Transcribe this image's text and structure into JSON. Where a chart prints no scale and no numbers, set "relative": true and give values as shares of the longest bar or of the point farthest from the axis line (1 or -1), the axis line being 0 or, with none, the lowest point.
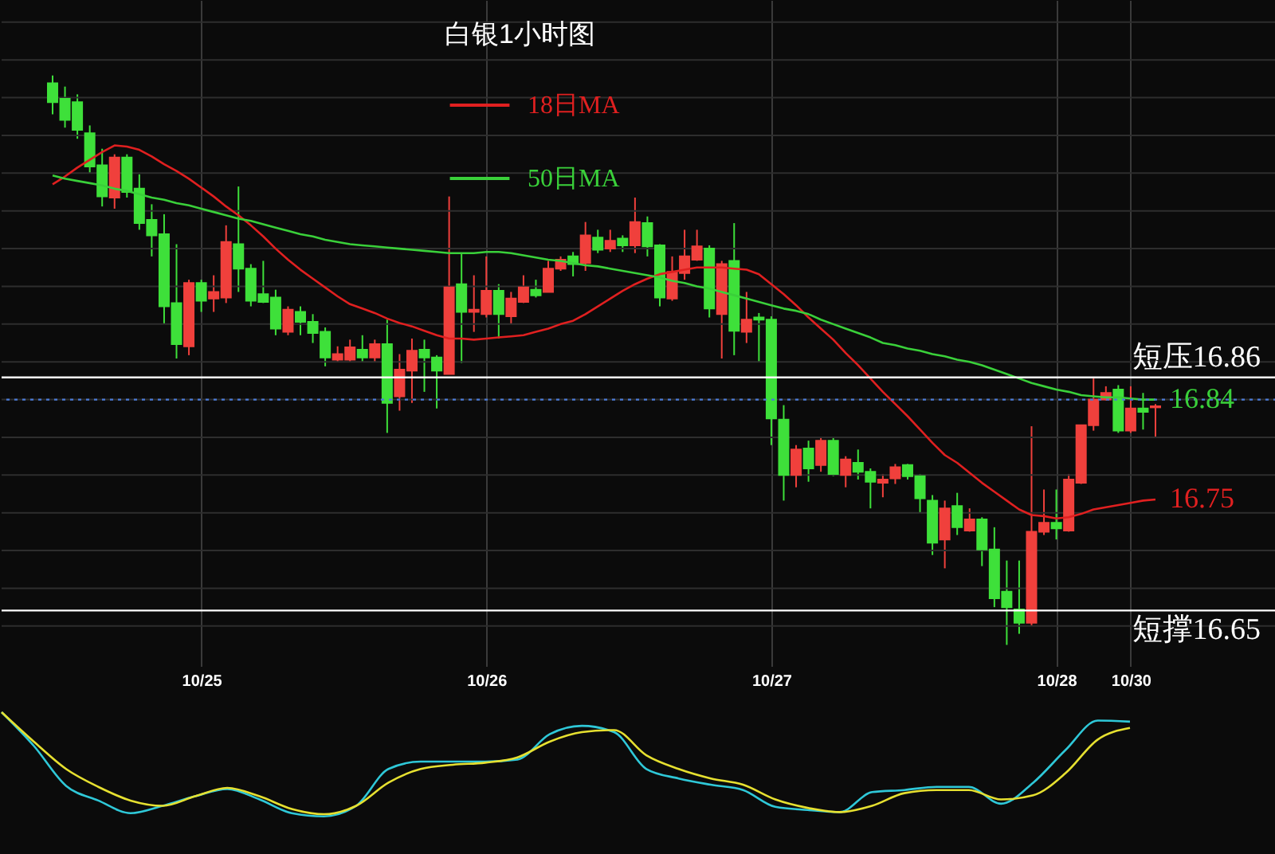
{
  "chart_data": [
    {
      "type": "candlestick",
      "title": "白银1小时图",
      "categories": [
        null,
        null,
        null,
        null,
        null,
        null,
        null,
        null,
        null,
        null,
        null,
        null,
        "10/25",
        null,
        null,
        null,
        null,
        null,
        null,
        null,
        null,
        null,
        null,
        null,
        null,
        null,
        null,
        null,
        null,
        null,
        null,
        null,
        null,
        null,
        null,
        "10/26",
        null,
        null,
        null,
        null,
        null,
        null,
        null,
        null,
        null,
        null,
        null,
        null,
        null,
        null,
        null,
        null,
        null,
        null,
        null,
        null,
        null,
        null,
        "10/27",
        null,
        null,
        null,
        null,
        null,
        null,
        null,
        null,
        null,
        null,
        null,
        null,
        null,
        null,
        null,
        null,
        null,
        null,
        null,
        null,
        null,
        null,
        "10/28",
        null,
        null,
        null,
        null,
        null,
        "10/30",
        null,
        null
      ],
      "ohlc": [
        [
          17.125,
          17.132,
          17.097,
          17.108
        ],
        [
          17.111,
          17.122,
          17.085,
          17.092
        ],
        [
          17.108,
          17.115,
          17.075,
          17.083
        ],
        [
          17.08,
          17.087,
          17.044,
          17.05
        ],
        [
          17.051,
          17.066,
          17.014,
          17.023
        ],
        [
          17.022,
          17.061,
          17.012,
          17.058
        ],
        [
          17.058,
          17.061,
          17.022,
          17.027
        ],
        [
          17.03,
          17.043,
          16.993,
          16.999
        ],
        [
          17.002,
          17.016,
          16.969,
          16.988
        ],
        [
          16.989,
          17.007,
          16.908,
          16.924
        ],
        [
          16.927,
          16.98,
          16.877,
          16.89
        ],
        [
          16.888,
          16.948,
          16.88,
          16.945
        ],
        [
          16.945,
          16.948,
          16.919,
          16.929
        ],
        [
          16.931,
          16.952,
          16.919,
          16.937
        ],
        [
          16.932,
          16.997,
          16.927,
          16.982
        ],
        [
          16.98,
          17.032,
          16.937,
          16.958
        ],
        [
          16.958,
          16.962,
          16.924,
          16.929
        ],
        [
          16.935,
          16.965,
          16.927,
          16.928
        ],
        [
          16.932,
          16.939,
          16.898,
          16.904
        ],
        [
          16.901,
          16.924,
          16.898,
          16.921
        ],
        [
          16.919,
          16.924,
          16.898,
          16.91
        ],
        [
          16.91,
          16.917,
          16.891,
          16.9
        ],
        [
          16.901,
          16.905,
          16.87,
          16.878
        ],
        [
          16.876,
          16.888,
          16.874,
          16.881
        ],
        [
          16.876,
          16.894,
          16.874,
          16.887
        ],
        [
          16.885,
          16.898,
          16.874,
          16.878
        ],
        [
          16.878,
          16.894,
          16.874,
          16.89
        ],
        [
          16.89,
          16.912,
          16.81,
          16.837
        ],
        [
          16.843,
          16.881,
          16.83,
          16.867
        ],
        [
          16.866,
          16.895,
          16.837,
          16.884
        ],
        [
          16.885,
          16.894,
          16.847,
          16.878
        ],
        [
          16.878,
          16.88,
          16.832,
          16.866
        ],
        [
          16.863,
          17.023,
          16.863,
          16.941
        ],
        [
          16.944,
          16.972,
          16.873,
          16.919
        ],
        [
          16.919,
          16.952,
          16.901,
          16.921
        ],
        [
          16.917,
          16.969,
          16.914,
          16.938
        ],
        [
          16.938,
          16.944,
          16.895,
          16.917
        ],
        [
          16.915,
          16.937,
          16.908,
          16.931
        ],
        [
          16.928,
          16.952,
          16.927,
          16.941
        ],
        [
          16.939,
          16.948,
          16.932,
          16.934
        ],
        [
          16.937,
          16.965,
          16.937,
          16.958
        ],
        [
          16.958,
          16.969,
          16.956,
          16.966
        ],
        [
          16.969,
          16.973,
          16.951,
          16.962
        ],
        [
          16.963,
          17.0,
          16.956,
          16.988
        ],
        [
          16.986,
          16.993,
          16.972,
          16.975
        ],
        [
          16.976,
          16.993,
          16.973,
          16.983
        ],
        [
          16.985,
          16.988,
          16.973,
          16.979
        ],
        [
          16.979,
          17.022,
          16.972,
          17.0
        ],
        [
          16.999,
          17.005,
          16.969,
          16.978
        ],
        [
          16.979,
          16.98,
          16.924,
          16.932
        ],
        [
          16.931,
          16.969,
          16.929,
          16.955
        ],
        [
          16.954,
          16.993,
          16.948,
          16.969
        ],
        [
          16.966,
          16.993,
          16.965,
          16.978
        ],
        [
          16.976,
          16.979,
          16.914,
          16.922
        ],
        [
          16.917,
          16.965,
          16.877,
          16.962
        ],
        [
          16.965,
          16.999,
          16.88,
          16.902
        ],
        [
          16.901,
          16.937,
          16.891,
          16.912
        ],
        [
          16.914,
          16.918,
          16.874,
          16.912
        ],
        [
          16.912,
          16.915,
          16.799,
          16.823
        ],
        [
          16.822,
          16.835,
          16.749,
          16.772
        ],
        [
          16.772,
          16.799,
          16.761,
          16.795
        ],
        [
          16.796,
          16.803,
          16.766,
          16.778
        ],
        [
          16.781,
          16.806,
          16.775,
          16.803
        ],
        [
          16.803,
          16.806,
          16.771,
          16.773
        ],
        [
          16.772,
          16.789,
          16.761,
          16.786
        ],
        [
          16.783,
          16.795,
          16.768,
          16.775
        ],
        [
          16.775,
          16.778,
          16.742,
          16.766
        ],
        [
          16.765,
          16.773,
          16.752,
          16.768
        ],
        [
          16.769,
          16.782,
          16.764,
          16.779
        ],
        [
          16.781,
          16.782,
          16.768,
          16.771
        ],
        [
          16.771,
          16.773,
          16.738,
          16.751
        ],
        [
          16.749,
          16.754,
          16.7,
          16.711
        ],
        [
          16.714,
          16.749,
          16.688,
          16.742
        ],
        [
          16.744,
          16.756,
          16.718,
          16.725
        ],
        [
          16.722,
          16.742,
          16.721,
          16.732
        ],
        [
          16.732,
          16.734,
          16.69,
          16.705
        ],
        [
          16.705,
          16.725,
          16.653,
          16.661
        ],
        [
          16.667,
          16.695,
          16.619,
          16.653
        ],
        [
          16.651,
          16.695,
          16.629,
          16.639
        ],
        [
          16.639,
          16.816,
          16.636,
          16.721
        ],
        [
          16.721,
          16.759,
          16.718,
          16.729
        ],
        [
          16.729,
          16.759,
          16.714,
          16.724
        ],
        [
          16.722,
          16.773,
          16.721,
          16.768
        ],
        [
          16.765,
          16.817,
          16.764,
          16.817
        ],
        [
          16.817,
          16.859,
          16.812,
          16.84
        ],
        [
          16.84,
          16.852,
          16.839,
          16.846
        ],
        [
          16.849,
          16.853,
          16.81,
          16.812
        ],
        [
          16.812,
          16.852,
          16.81,
          16.832
        ],
        [
          16.832,
          16.846,
          16.813,
          16.829
        ],
        [
          16.833,
          16.836,
          16.806,
          16.834
        ]
      ],
      "colors": [
        "#3ee03a",
        "#3ee03a",
        "#3ee03a",
        "#3ee03a",
        "#3ee03a",
        "#f0403c",
        "#3ee03a",
        "#3ee03a",
        "#3ee03a",
        "#3ee03a",
        "#3ee03a",
        "#f0403c",
        "#3ee03a",
        "#f0403c",
        "#f0403c",
        "#3ee03a",
        "#3ee03a",
        "#3ee03a",
        "#3ee03a",
        "#f0403c",
        "#3ee03a",
        "#3ee03a",
        "#3ee03a",
        "#f0403c",
        "#f0403c",
        "#3ee03a",
        "#f0403c",
        "#3ee03a",
        "#f0403c",
        "#f0403c",
        "#3ee03a",
        "#3ee03a",
        "#f0403c",
        "#3ee03a",
        "#f0403c",
        "#f0403c",
        "#3ee03a",
        "#f0403c",
        "#f0403c",
        "#3ee03a",
        "#f0403c",
        "#f0403c",
        "#3ee03a",
        "#f0403c",
        "#3ee03a",
        "#f0403c",
        "#3ee03a",
        "#f0403c",
        "#3ee03a",
        "#3ee03a",
        "#f0403c",
        "#f0403c",
        "#f0403c",
        "#3ee03a",
        "#f0403c",
        "#3ee03a",
        "#f0403c",
        "#3ee03a",
        "#3ee03a",
        "#3ee03a",
        "#f0403c",
        "#3ee03a",
        "#f0403c",
        "#3ee03a",
        "#f0403c",
        "#3ee03a",
        "#3ee03a",
        "#f0403c",
        "#f0403c",
        "#3ee03a",
        "#3ee03a",
        "#3ee03a",
        "#f0403c",
        "#3ee03a",
        "#f0403c",
        "#3ee03a",
        "#3ee03a",
        "#3ee03a",
        "#3ee03a",
        "#f0403c",
        "#f0403c",
        "#3ee03a",
        "#f0403c",
        "#f0403c",
        "#f0403c",
        "#f0403c",
        "#3ee03a",
        "#f0403c",
        "#3ee03a",
        "#f0403c"
      ],
      "series": [
        {
          "type": "line",
          "name": "18日MA",
          "color": "#e02020",
          "values": [
            17.034,
            17.041,
            17.049,
            17.056,
            17.063,
            17.069,
            17.068,
            17.065,
            17.059,
            17.052,
            17.046,
            17.039,
            17.031,
            17.023,
            17.014,
            17.006,
            16.997,
            16.987,
            16.976,
            16.966,
            16.957,
            16.949,
            16.941,
            16.933,
            16.926,
            16.922,
            16.918,
            16.913,
            16.909,
            16.906,
            16.902,
            16.898,
            16.895,
            16.895,
            16.894,
            16.895,
            16.896,
            16.897,
            16.898,
            16.901,
            16.904,
            16.908,
            16.911,
            16.917,
            16.924,
            16.931,
            16.938,
            16.944,
            16.949,
            16.953,
            16.955,
            16.957,
            16.959,
            16.959,
            16.959,
            16.958,
            16.957,
            16.953,
            16.944,
            16.935,
            16.925,
            16.914,
            16.904,
            16.894,
            16.882,
            16.871,
            16.859,
            16.847,
            16.836,
            16.825,
            16.813,
            16.801,
            16.79,
            16.783,
            16.774,
            16.765,
            16.757,
            16.749,
            16.741,
            16.736,
            16.735,
            16.733,
            16.734,
            16.737,
            16.741,
            16.743,
            16.745,
            16.747,
            16.749,
            16.75
          ]
        },
        {
          "type": "line",
          "name": "50日MA",
          "color": "#3ad03a",
          "values": [
            17.042,
            17.039,
            17.037,
            17.035,
            17.033,
            17.03,
            17.028,
            17.025,
            17.022,
            17.02,
            17.017,
            17.015,
            17.012,
            17.009,
            17.006,
            17.003,
            17.001,
            16.998,
            16.995,
            16.992,
            16.989,
            16.987,
            16.984,
            16.982,
            16.98,
            16.979,
            16.978,
            16.977,
            16.976,
            16.975,
            16.974,
            16.973,
            16.972,
            16.972,
            16.972,
            16.973,
            16.973,
            16.972,
            16.97,
            16.968,
            16.966,
            16.965,
            16.963,
            16.961,
            16.96,
            16.958,
            16.956,
            16.954,
            16.952,
            16.95,
            16.947,
            16.945,
            16.942,
            16.94,
            16.937,
            16.934,
            16.931,
            16.928,
            16.925,
            16.922,
            16.92,
            16.917,
            16.912,
            16.908,
            16.904,
            16.9,
            16.896,
            16.891,
            16.889,
            16.886,
            16.884,
            16.881,
            16.879,
            16.876,
            16.874,
            16.871,
            16.867,
            16.863,
            16.859,
            16.855,
            16.852,
            16.849,
            16.847,
            16.844,
            16.843,
            16.842,
            16.842,
            16.841,
            16.84,
            16.84
          ]
        }
      ],
      "ylim": [
        16.6,
        17.2
      ],
      "yticks": [
        {
          "value": 16.636,
          "label": null
        },
        {
          "value": 16.67,
          "label": null
        },
        {
          "value": 16.704,
          "label": null
        },
        {
          "value": 16.738,
          "label": null
        },
        {
          "value": 16.772,
          "label": null
        },
        {
          "value": 16.806,
          "label": null
        },
        {
          "value": 16.84,
          "label": null
        },
        {
          "value": 16.874,
          "label": null
        },
        {
          "value": 16.908,
          "label": null
        },
        {
          "value": 16.942,
          "label": null
        },
        {
          "value": 16.976,
          "label": null
        },
        {
          "value": 17.01,
          "label": null
        },
        {
          "value": 17.044,
          "label": null
        },
        {
          "value": 17.078,
          "label": null
        },
        {
          "value": 17.112,
          "label": null
        },
        {
          "value": 17.146,
          "label": null
        },
        {
          "value": 17.18,
          "label": null
        }
      ],
      "tick_labels": "x",
      "grid": true,
      "legend": "top",
      "ref_lines": [
        {
          "axis": "y",
          "value": 16.86,
          "label": "短压16.86",
          "color": "#ffffff"
        },
        {
          "axis": "y",
          "value": 16.65,
          "label": "短撑16.65",
          "color": "#ffffff"
        },
        {
          "axis": "y",
          "value": 16.84,
          "color": "#4a7ad8",
          "line_style": "dotted"
        }
      ],
      "annotations": [
        "16.75",
        "16.84"
      ]
    },
    {
      "type": "line",
      "relative": true,
      "categories": [
        null,
        null,
        null,
        null,
        null,
        null,
        null,
        null,
        null,
        null,
        null,
        null,
        null,
        null,
        null,
        null,
        null,
        null,
        null,
        null,
        null,
        null,
        null,
        null,
        null,
        null,
        null,
        null,
        null,
        null,
        null,
        null,
        null,
        null,
        null,
        null
      ],
      "series": [
        {
          "color": "#2fc8d8",
          "values": [
            1.0,
            0.68,
            0.3,
            0.16,
            0.04,
            0.11,
            0.2,
            0.27,
            0.17,
            0.04,
            0.01,
            0.11,
            0.46,
            0.53,
            0.53,
            0.53,
            0.55,
            0.79,
            0.87,
            0.81,
            0.46,
            0.37,
            0.31,
            0.26,
            0.1,
            0.07,
            0.05,
            0.24,
            0.26,
            0.29,
            0.29,
            0.13,
            0.33,
            0.64,
            0.92,
            0.91
          ]
        },
        {
          "color": "#e6e030",
          "values": [
            1.0,
            0.72,
            0.46,
            0.29,
            0.16,
            0.11,
            0.2,
            0.28,
            0.2,
            0.08,
            0.03,
            0.11,
            0.33,
            0.46,
            0.5,
            0.52,
            0.57,
            0.72,
            0.81,
            0.83,
            0.59,
            0.46,
            0.37,
            0.31,
            0.17,
            0.09,
            0.05,
            0.11,
            0.23,
            0.26,
            0.26,
            0.17,
            0.21,
            0.42,
            0.74,
            0.85
          ]
        }
      ]
    }
  ]
}
